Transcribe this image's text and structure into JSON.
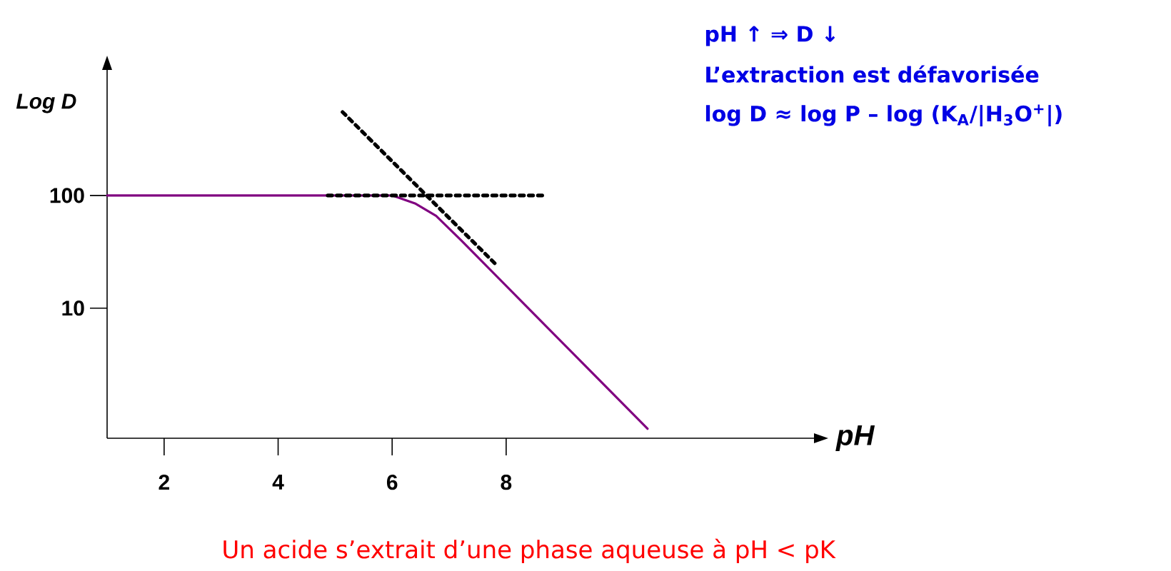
{
  "chart_data": {
    "type": "line",
    "xlabel": "pH",
    "ylabel": "Log D",
    "log": "y",
    "xlim": [
      1,
      13.4
    ],
    "ylim": [
      0.7,
      1300
    ],
    "xticks": [
      2,
      4,
      6,
      8
    ],
    "yticks": [
      10,
      100
    ],
    "annotations": [
      "pH ↑ ⇒ D ↓",
      "L’extraction est défavorisée",
      "log D ≈ log P – log (K$_{A}$/|H$_{3}$O$^{+}$|)",
      "Un acide s’extrait d’une phase aqueuse à pH < pK"
    ],
    "series": [
      {
        "color": "#800080",
        "line_style": "solid",
        "x": [
          1,
          6,
          6.4,
          6.77,
          7.21,
          10.48
        ],
        "values": [
          100,
          100,
          85,
          66,
          40,
          0.85
        ]
      },
      {
        "color": "#000000",
        "line_style": "dotted",
        "x": [
          4.87,
          8.69
        ],
        "values": [
          100,
          100
        ]
      },
      {
        "color": "#000000",
        "line_style": "dotted",
        "x": [
          5.13,
          7.85
        ],
        "values": [
          550,
          23.6
        ]
      }
    ]
  }
}
